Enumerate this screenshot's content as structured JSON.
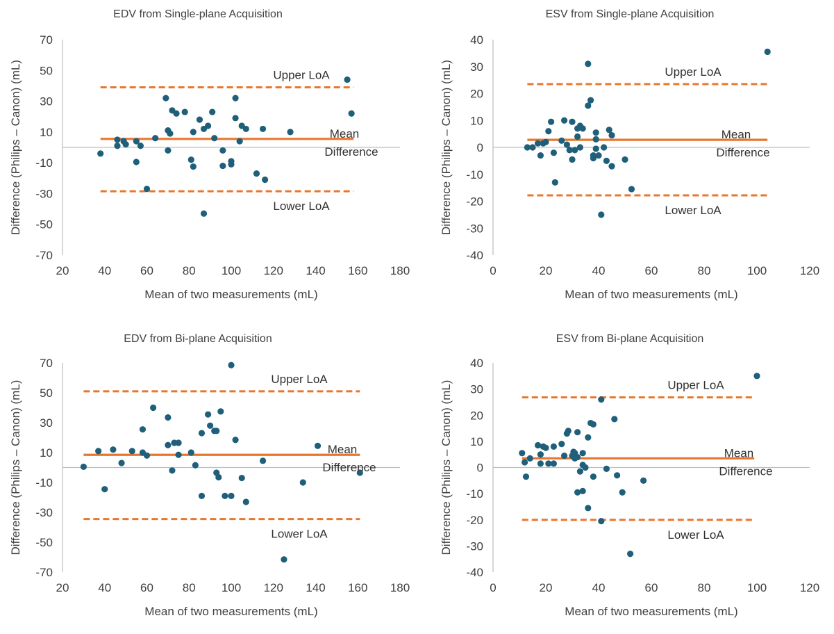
{
  "colors": {
    "point": "#1f5f7a",
    "lines": "#e8772e",
    "axis": "#bfbfbf",
    "text": "#404040",
    "label": "#303030"
  },
  "chart_data": [
    {
      "type": "scatter",
      "title": "EDV from Single-plane Acquisition",
      "xlabel": "Mean of two measurements (mL)",
      "ylabel": "Difference (Philips – Canon) (mL)",
      "xlim": [
        20,
        180
      ],
      "ylim": [
        -70,
        70
      ],
      "x_ticks": [
        20,
        40,
        60,
        80,
        100,
        120,
        140,
        160,
        180
      ],
      "y_ticks": [
        -70,
        -50,
        -30,
        -10,
        10,
        30,
        50,
        70
      ],
      "upper_loa": 39,
      "mean_difference": 5.5,
      "lower_loa": -28.5,
      "line_x_range": [
        38,
        158
      ],
      "annotations": [
        "Upper LoA",
        "Mean",
        "Difference",
        "Lower LoA"
      ],
      "points": [
        [
          38,
          -4
        ],
        [
          46,
          5
        ],
        [
          46,
          1
        ],
        [
          49,
          4
        ],
        [
          50,
          2
        ],
        [
          55,
          4
        ],
        [
          55,
          -9.5
        ],
        [
          57,
          1
        ],
        [
          60,
          -27
        ],
        [
          64,
          6
        ],
        [
          69,
          32
        ],
        [
          70,
          11
        ],
        [
          71,
          9
        ],
        [
          70,
          -2
        ],
        [
          72,
          24
        ],
        [
          74,
          22
        ],
        [
          78,
          23
        ],
        [
          81,
          -8
        ],
        [
          82,
          -12.5
        ],
        [
          82,
          10
        ],
        [
          85,
          18
        ],
        [
          87,
          12
        ],
        [
          87,
          -43
        ],
        [
          89,
          14
        ],
        [
          91,
          23
        ],
        [
          92,
          6
        ],
        [
          96,
          -2
        ],
        [
          96,
          -12
        ],
        [
          100,
          -9
        ],
        [
          100,
          -11
        ],
        [
          102,
          32
        ],
        [
          102,
          19
        ],
        [
          104,
          4
        ],
        [
          105,
          14
        ],
        [
          107,
          12
        ],
        [
          112,
          -17
        ],
        [
          115,
          12
        ],
        [
          116,
          -21
        ],
        [
          128,
          10
        ],
        [
          155,
          44
        ],
        [
          157,
          22
        ]
      ]
    },
    {
      "type": "scatter",
      "title": "ESV from Single-plane Acquisition",
      "xlabel": "Mean of two measurements (mL)",
      "ylabel": "Difference (Philips – Canon) (mL)",
      "xlim": [
        0,
        120
      ],
      "ylim": [
        -40,
        40
      ],
      "x_ticks": [
        0,
        20,
        40,
        60,
        80,
        100,
        120
      ],
      "y_ticks": [
        -40,
        -30,
        -20,
        -10,
        0,
        10,
        20,
        30,
        40
      ],
      "upper_loa": 23.5,
      "mean_difference": 2.8,
      "lower_loa": -17.8,
      "line_x_range": [
        13,
        104
      ],
      "annotations": [
        "Upper LoA",
        "Mean",
        "Difference",
        "Lower LoA"
      ],
      "points": [
        [
          13,
          0
        ],
        [
          15,
          0
        ],
        [
          17,
          1.5
        ],
        [
          18,
          -3
        ],
        [
          19,
          1.5
        ],
        [
          20,
          2
        ],
        [
          21,
          6
        ],
        [
          22,
          9.5
        ],
        [
          23,
          -2
        ],
        [
          23.5,
          -13
        ],
        [
          26,
          2.5
        ],
        [
          27,
          10
        ],
        [
          28,
          1
        ],
        [
          29,
          -1
        ],
        [
          30,
          9.5
        ],
        [
          30,
          -4.5
        ],
        [
          31,
          -1
        ],
        [
          32,
          7
        ],
        [
          32,
          4
        ],
        [
          33,
          0
        ],
        [
          33,
          8
        ],
        [
          34,
          7
        ],
        [
          36,
          15.5
        ],
        [
          36,
          31
        ],
        [
          37,
          17.5
        ],
        [
          38,
          -4
        ],
        [
          38,
          -3
        ],
        [
          39,
          5.5
        ],
        [
          39,
          3
        ],
        [
          39,
          -0.5
        ],
        [
          40,
          -3
        ],
        [
          41,
          -25
        ],
        [
          42,
          0
        ],
        [
          43,
          -5
        ],
        [
          44,
          6.5
        ],
        [
          45,
          -7
        ],
        [
          45,
          4.5
        ],
        [
          50,
          -4.5
        ],
        [
          52.5,
          -15.5
        ],
        [
          104,
          35.5
        ]
      ]
    },
    {
      "type": "scatter",
      "title": "EDV from Bi-plane Acquisition",
      "xlabel": "Mean of two measurements (mL)",
      "ylabel": "Difference (Philips – Canon) (mL)",
      "xlim": [
        20,
        180
      ],
      "ylim": [
        -70,
        70
      ],
      "x_ticks": [
        20,
        40,
        60,
        80,
        100,
        120,
        140,
        160,
        180
      ],
      "y_ticks": [
        -70,
        -50,
        -30,
        -10,
        10,
        30,
        50,
        70
      ],
      "upper_loa": 51,
      "mean_difference": 8.5,
      "lower_loa": -34.5,
      "line_x_range": [
        30,
        161
      ],
      "annotations": [
        "Upper LoA",
        "Mean",
        "Difference",
        "Lower LoA"
      ],
      "points": [
        [
          30,
          0.5
        ],
        [
          37,
          11
        ],
        [
          40,
          -14.5
        ],
        [
          44,
          12
        ],
        [
          48,
          3
        ],
        [
          53,
          11
        ],
        [
          58,
          25.5
        ],
        [
          58,
          10
        ],
        [
          60,
          8
        ],
        [
          63,
          40
        ],
        [
          70,
          33.5
        ],
        [
          70,
          15
        ],
        [
          72,
          -2
        ],
        [
          73,
          16.5
        ],
        [
          75,
          16.5
        ],
        [
          75,
          8.5
        ],
        [
          81,
          10
        ],
        [
          83,
          1.5
        ],
        [
          86,
          23
        ],
        [
          86,
          -19
        ],
        [
          89,
          35.5
        ],
        [
          90,
          28
        ],
        [
          92,
          24.5
        ],
        [
          93,
          24.5
        ],
        [
          93,
          -3.5
        ],
        [
          94,
          -6.5
        ],
        [
          95,
          37.5
        ],
        [
          97,
          -19
        ],
        [
          100,
          -19
        ],
        [
          100,
          68.5
        ],
        [
          102,
          18.5
        ],
        [
          105,
          -7
        ],
        [
          107,
          -23
        ],
        [
          115,
          4.5
        ],
        [
          125,
          -61.5
        ],
        [
          134,
          -10
        ],
        [
          141,
          14.5
        ],
        [
          161,
          -3.5
        ]
      ]
    },
    {
      "type": "scatter",
      "title": "ESV from Bi-plane Acquisition",
      "xlabel": "Mean of two measurements (mL)",
      "ylabel": "Difference (Philips – Canon) (mL)",
      "xlim": [
        0,
        120
      ],
      "ylim": [
        -40,
        40
      ],
      "x_ticks": [
        0,
        20,
        40,
        60,
        80,
        100,
        120
      ],
      "y_ticks": [
        -40,
        -30,
        -20,
        -10,
        0,
        10,
        20,
        30,
        40
      ],
      "upper_loa": 26.8,
      "mean_difference": 3.5,
      "lower_loa": -20,
      "line_x_range": [
        11,
        99
      ],
      "annotations": [
        "Upper LoA",
        "Mean",
        "Difference",
        "Lower LoA"
      ],
      "points": [
        [
          11,
          5.5
        ],
        [
          12,
          2
        ],
        [
          12.5,
          -3.5
        ],
        [
          14,
          3.5
        ],
        [
          17,
          8.5
        ],
        [
          18,
          1.5
        ],
        [
          18,
          5
        ],
        [
          19,
          8
        ],
        [
          20,
          7.5
        ],
        [
          21,
          1.5
        ],
        [
          23,
          8
        ],
        [
          23,
          1.5
        ],
        [
          26,
          9
        ],
        [
          27,
          4.5
        ],
        [
          28,
          13
        ],
        [
          28.5,
          14
        ],
        [
          30,
          4.5
        ],
        [
          30.5,
          6
        ],
        [
          31,
          5.5
        ],
        [
          31,
          3.5
        ],
        [
          32,
          -9.5
        ],
        [
          32,
          4
        ],
        [
          32,
          13.5
        ],
        [
          33,
          -1.5
        ],
        [
          34,
          5.5
        ],
        [
          34,
          1
        ],
        [
          34,
          -9
        ],
        [
          35,
          0
        ],
        [
          36,
          11.5
        ],
        [
          36,
          -15.5
        ],
        [
          37,
          17
        ],
        [
          38,
          16.5
        ],
        [
          38,
          -3.5
        ],
        [
          41,
          26
        ],
        [
          41,
          -20.5
        ],
        [
          43,
          -0.5
        ],
        [
          46,
          18.5
        ],
        [
          47,
          -3
        ],
        [
          49,
          -9.5
        ],
        [
          52,
          -33
        ],
        [
          57,
          -5
        ],
        [
          100,
          35
        ]
      ]
    }
  ]
}
